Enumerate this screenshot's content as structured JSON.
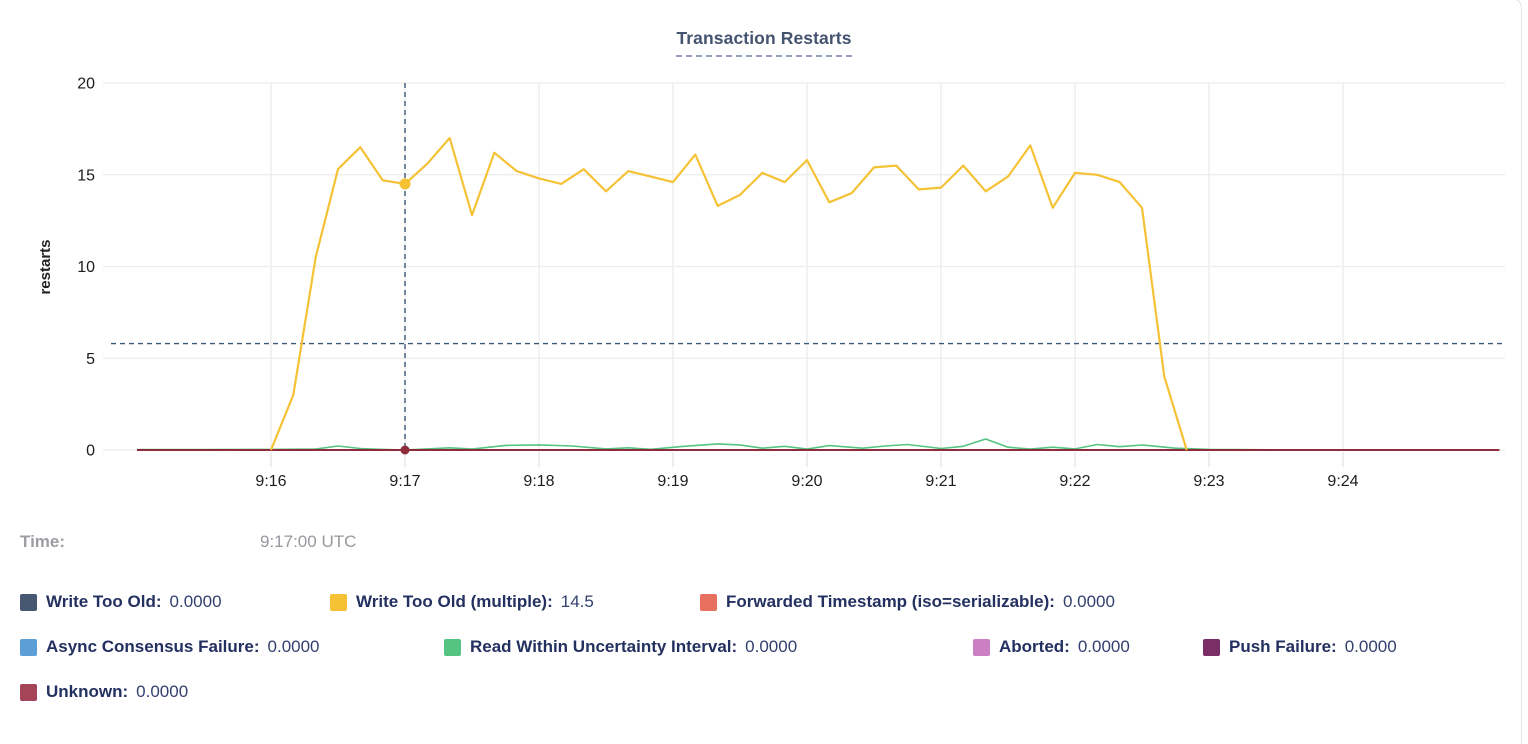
{
  "card": {
    "title": "Transaction Restarts"
  },
  "hover": {
    "time_label": "Time:",
    "time_value": "9:17:00 UTC"
  },
  "legend": {
    "rows": [
      [
        {
          "label": "Write Too Old:",
          "value": "0.0000",
          "color": "#475872"
        },
        {
          "label": "Write Too Old (multiple):",
          "value": "14.5",
          "color": "#f5c236"
        },
        {
          "label": "Forwarded Timestamp (iso=serializable):",
          "value": "0.0000",
          "color": "#e8705f"
        }
      ],
      [
        {
          "label": "Async Consensus Failure:",
          "value": "0.0000",
          "color": "#5b9fd6"
        },
        {
          "label": "Read Within Uncertainty Interval:",
          "value": "0.0000",
          "color": "#55c382"
        },
        {
          "label": "Aborted:",
          "value": "0.0000",
          "color": "#cd7fc4"
        },
        {
          "label": "Push Failure:",
          "value": "0.0000",
          "color": "#7b2d66"
        }
      ],
      [
        {
          "label": "Unknown:",
          "value": "0.0000",
          "color": "#a54458"
        }
      ]
    ]
  },
  "chart_data": {
    "type": "line",
    "title": "Transaction Restarts",
    "xlabel": "",
    "ylabel": "restarts",
    "ylim": [
      0,
      20
    ],
    "y_ticks": [
      0,
      5,
      10,
      15,
      20
    ],
    "x_ticks": [
      "9:16",
      "9:17",
      "9:18",
      "9:19",
      "9:20",
      "9:21",
      "9:22",
      "9:23",
      "9:24"
    ],
    "x_range": [
      "9:15:00",
      "9:25:10"
    ],
    "grid": true,
    "legend_position": "bottom",
    "crosshair": {
      "time": "9:17:00",
      "mouse_y_value": 5.8,
      "points": [
        {
          "series": "Write Too Old (multiple)",
          "value": 14.5,
          "color": "#f5c236"
        },
        {
          "series": "Unknown",
          "value": 0,
          "color": "#8e2c3c"
        }
      ]
    },
    "series": [
      {
        "name": "Write Too Old",
        "color": "#475872",
        "points": [
          [
            "9:15:00",
            0
          ],
          [
            "9:25:10",
            0
          ]
        ]
      },
      {
        "name": "Forwarded Timestamp (iso=serializable)",
        "color": "#e8705f",
        "points": [
          [
            "9:15:00",
            0
          ],
          [
            "9:25:10",
            0
          ]
        ]
      },
      {
        "name": "Async Consensus Failure",
        "color": "#5b9fd6",
        "points": [
          [
            "9:15:00",
            0
          ],
          [
            "9:25:10",
            0
          ]
        ]
      },
      {
        "name": "Aborted",
        "color": "#cd7fc4",
        "points": [
          [
            "9:15:00",
            0
          ],
          [
            "9:25:10",
            0
          ]
        ]
      },
      {
        "name": "Push Failure",
        "color": "#7b2d66",
        "points": [
          [
            "9:15:00",
            0
          ],
          [
            "9:25:10",
            0
          ]
        ]
      },
      {
        "name": "Read Within Uncertainty Interval",
        "color": "#55c382",
        "points": [
          [
            "9:15:00",
            0.02
          ],
          [
            "9:15:30",
            0.02
          ],
          [
            "9:16:00",
            0.03
          ],
          [
            "9:16:20",
            0.05
          ],
          [
            "9:16:30",
            0.22
          ],
          [
            "9:16:40",
            0.08
          ],
          [
            "9:16:50",
            0.03
          ],
          [
            "9:17:00",
            0
          ],
          [
            "9:17:20",
            0.12
          ],
          [
            "9:17:30",
            0.05
          ],
          [
            "9:17:45",
            0.25
          ],
          [
            "9:18:00",
            0.28
          ],
          [
            "9:18:15",
            0.22
          ],
          [
            "9:18:30",
            0.06
          ],
          [
            "9:18:40",
            0.12
          ],
          [
            "9:18:50",
            0.04
          ],
          [
            "9:19:05",
            0.2
          ],
          [
            "9:19:20",
            0.33
          ],
          [
            "9:19:30",
            0.28
          ],
          [
            "9:19:40",
            0.1
          ],
          [
            "9:19:50",
            0.2
          ],
          [
            "9:20:00",
            0.05
          ],
          [
            "9:20:10",
            0.24
          ],
          [
            "9:20:25",
            0.1
          ],
          [
            "9:20:35",
            0.22
          ],
          [
            "9:20:45",
            0.3
          ],
          [
            "9:21:00",
            0.08
          ],
          [
            "9:21:10",
            0.2
          ],
          [
            "9:21:20",
            0.6
          ],
          [
            "9:21:30",
            0.15
          ],
          [
            "9:21:40",
            0.05
          ],
          [
            "9:21:50",
            0.15
          ],
          [
            "9:22:00",
            0.06
          ],
          [
            "9:22:10",
            0.3
          ],
          [
            "9:22:20",
            0.18
          ],
          [
            "9:22:30",
            0.27
          ],
          [
            "9:22:45",
            0.1
          ],
          [
            "9:23:00",
            0.03
          ],
          [
            "9:23:30",
            0.01
          ],
          [
            "9:24:00",
            0.01
          ],
          [
            "9:25:10",
            0.01
          ]
        ]
      },
      {
        "name": "Unknown",
        "color": "#8e2c3c",
        "points": [
          [
            "9:15:00",
            0
          ],
          [
            "9:25:10",
            0
          ]
        ]
      },
      {
        "name": "Write Too Old (multiple)",
        "color": "#f5c236",
        "points": [
          [
            "9:16:00",
            0
          ],
          [
            "9:16:10",
            3.0
          ],
          [
            "9:16:20",
            10.5
          ],
          [
            "9:16:30",
            15.3
          ],
          [
            "9:16:40",
            16.5
          ],
          [
            "9:16:50",
            14.7
          ],
          [
            "9:17:00",
            14.5
          ],
          [
            "9:17:10",
            15.6
          ],
          [
            "9:17:20",
            17.0
          ],
          [
            "9:17:30",
            12.8
          ],
          [
            "9:17:40",
            16.2
          ],
          [
            "9:17:50",
            15.2
          ],
          [
            "9:18:00",
            14.8
          ],
          [
            "9:18:10",
            14.5
          ],
          [
            "9:18:20",
            15.3
          ],
          [
            "9:18:30",
            14.1
          ],
          [
            "9:18:40",
            15.2
          ],
          [
            "9:18:50",
            14.9
          ],
          [
            "9:19:00",
            14.6
          ],
          [
            "9:19:10",
            16.1
          ],
          [
            "9:19:20",
            13.3
          ],
          [
            "9:19:30",
            13.9
          ],
          [
            "9:19:40",
            15.1
          ],
          [
            "9:19:50",
            14.6
          ],
          [
            "9:20:00",
            15.8
          ],
          [
            "9:20:10",
            13.5
          ],
          [
            "9:20:20",
            14.0
          ],
          [
            "9:20:30",
            15.4
          ],
          [
            "9:20:40",
            15.5
          ],
          [
            "9:20:50",
            14.2
          ],
          [
            "9:21:00",
            14.3
          ],
          [
            "9:21:10",
            15.5
          ],
          [
            "9:21:20",
            14.1
          ],
          [
            "9:21:30",
            14.9
          ],
          [
            "9:21:40",
            16.6
          ],
          [
            "9:21:50",
            13.2
          ],
          [
            "9:22:00",
            15.1
          ],
          [
            "9:22:10",
            15.0
          ],
          [
            "9:22:20",
            14.6
          ],
          [
            "9:22:30",
            13.2
          ],
          [
            "9:22:40",
            4.0
          ],
          [
            "9:22:50",
            0
          ]
        ]
      }
    ]
  }
}
